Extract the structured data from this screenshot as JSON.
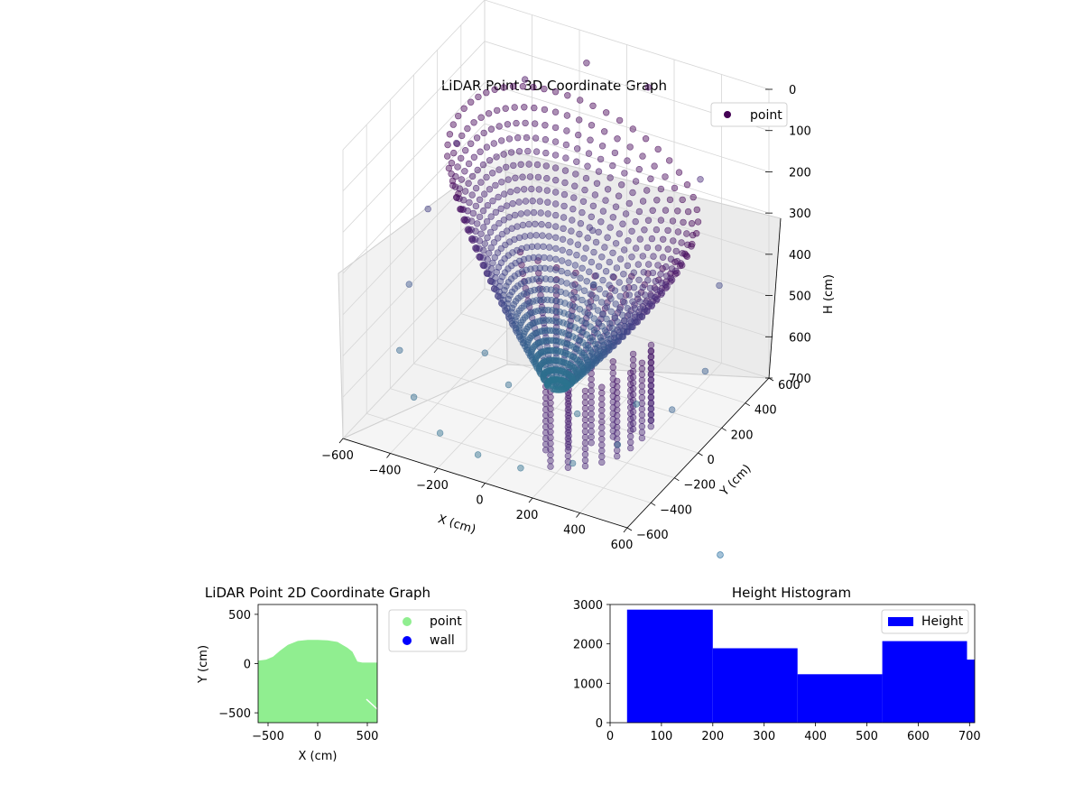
{
  "chart_data": [
    {
      "type": "scatter",
      "projection": "3d",
      "title": "LiDAR Point 3D Coordinate Graph",
      "xlabel": "X (cm)",
      "ylabel": "Y (cm)",
      "zlabel": "H (cm)",
      "xlim": [
        -600,
        600
      ],
      "ylim": [
        -600,
        600
      ],
      "zlim": [
        700,
        0
      ],
      "z_axis_inverted": true,
      "xticks": [
        "−600",
        "−400",
        "−200",
        "0",
        "200",
        "400",
        "600"
      ],
      "yticks": [
        "−600",
        "−400",
        "−200",
        "0",
        "200",
        "400",
        "600"
      ],
      "zticks": [
        "0",
        "100",
        "200",
        "300",
        "400",
        "500",
        "600",
        "700"
      ],
      "legend": {
        "position": "top-right",
        "entries": [
          "point"
        ]
      },
      "colormap": "viridis",
      "colormap_colors": [
        "#440154",
        "#482475",
        "#414487",
        "#355f8d",
        "#2a788e"
      ],
      "series": [
        {
          "name": "point",
          "note_shape": "dense polar sweep of points forming a bowl-like surface; ceiling points dark purple, lower points teal",
          "points": [
            {
              "x": -480,
              "y": 120,
              "h": 180
            },
            {
              "x": -560,
              "y": 40,
              "h": 330
            },
            {
              "x": -580,
              "y": -80,
              "h": 480
            },
            {
              "x": -560,
              "y": -200,
              "h": 600
            },
            {
              "x": -420,
              "y": -360,
              "h": 640
            },
            {
              "x": -250,
              "y": -480,
              "h": 660
            },
            {
              "x": -60,
              "y": -540,
              "h": 660
            },
            {
              "x": 120,
              "y": -540,
              "h": 660
            },
            {
              "x": 300,
              "y": -460,
              "h": 640
            },
            {
              "x": 440,
              "y": -360,
              "h": 600
            },
            {
              "x": 560,
              "y": -140,
              "h": 560
            },
            {
              "x": 600,
              "y": 60,
              "h": 520
            },
            {
              "x": 560,
              "y": 260,
              "h": 380
            },
            {
              "x": 400,
              "y": 420,
              "h": 200
            },
            {
              "x": 150,
              "y": 480,
              "h": 40
            },
            {
              "x": -100,
              "y": 460,
              "h": 20
            },
            {
              "x": -300,
              "y": 340,
              "h": 60
            },
            {
              "x": 0,
              "y": 0,
              "h": 640
            },
            {
              "x": -150,
              "y": -100,
              "h": 640
            },
            {
              "x": 150,
              "y": -120,
              "h": 650
            },
            {
              "x": 60,
              "y": 200,
              "h": 450
            },
            {
              "x": 80,
              "y": 150,
              "h": 300
            },
            {
              "x": 300,
              "y": 80,
              "h": 660
            },
            {
              "x": -300,
              "y": 0,
              "h": 620
            }
          ]
        }
      ]
    },
    {
      "type": "scatter",
      "title": "LiDAR Point 2D Coordinate Graph",
      "xlabel": "X (cm)",
      "ylabel": "Y (cm)",
      "xlim": [
        -600,
        600
      ],
      "ylim": [
        -600,
        600
      ],
      "xticks": [
        "−500",
        "0",
        "500"
      ],
      "yticks": [
        "−500",
        "0",
        "500"
      ],
      "legend": {
        "position": "outside-right",
        "entries": [
          "point",
          "wall"
        ]
      },
      "series": [
        {
          "name": "point",
          "color": "#90ee90",
          "filled_outline": [
            [
              -600,
              30
            ],
            [
              -520,
              40
            ],
            [
              -450,
              70
            ],
            [
              -380,
              130
            ],
            [
              -300,
              190
            ],
            [
              -200,
              230
            ],
            [
              -100,
              240
            ],
            [
              0,
              240
            ],
            [
              100,
              235
            ],
            [
              200,
              220
            ],
            [
              300,
              160
            ],
            [
              350,
              120
            ],
            [
              400,
              20
            ],
            [
              450,
              10
            ],
            [
              600,
              10
            ],
            [
              600,
              -600
            ],
            [
              -600,
              -600
            ]
          ]
        },
        {
          "name": "wall",
          "color": "#0000ff",
          "points": []
        }
      ]
    },
    {
      "type": "bar",
      "histogram": true,
      "title": "Height Histogram",
      "xlim": [
        0,
        710
      ],
      "ylim": [
        0,
        3000
      ],
      "xticks": [
        "0",
        "100",
        "200",
        "300",
        "400",
        "500",
        "600",
        "700"
      ],
      "yticks": [
        "0",
        "1000",
        "2000",
        "3000"
      ],
      "legend": {
        "position": "top-right",
        "entries": [
          "Height"
        ]
      },
      "series": [
        {
          "name": "Height",
          "color": "#0000ff",
          "bins": [
            {
              "from": 33,
              "to": 200,
              "count": 2870
            },
            {
              "from": 200,
              "to": 365,
              "count": 1890
            },
            {
              "from": 365,
              "to": 530,
              "count": 1230
            },
            {
              "from": 530,
              "to": 695,
              "count": 2070
            },
            {
              "from": 695,
              "to": 710,
              "count": 1600
            }
          ]
        }
      ]
    }
  ]
}
